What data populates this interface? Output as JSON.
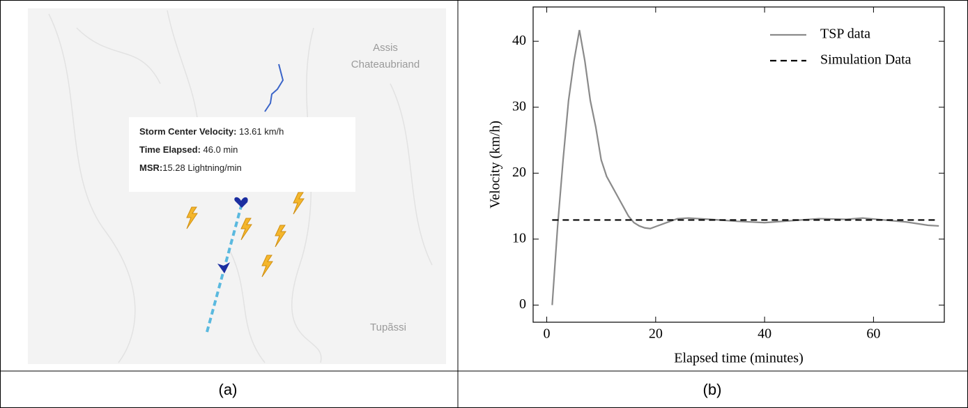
{
  "panel_a": {
    "caption": "(a)",
    "places": [
      "Assis",
      "Chateaubriand",
      "Tupãssi"
    ],
    "tooltip": [
      {
        "label": "Storm Center Velocity:",
        "value": " 13.61 km/h"
      },
      {
        "label": "Time Elapsed:",
        "value": " 46.0 min"
      },
      {
        "label": "MSR:",
        "value": "15.28 Lightning/min"
      }
    ]
  },
  "panel_b": {
    "caption": "(b)"
  },
  "chart_data": {
    "type": "line",
    "xlabel": "Elapsed time (minutes)",
    "ylabel": "Velocity (km/h)",
    "xlim": [
      -2.5,
      73
    ],
    "ylim": [
      -2.6,
      45.2
    ],
    "xticks": [
      0,
      20,
      40,
      60
    ],
    "yticks": [
      0,
      10,
      20,
      30,
      40
    ],
    "legend": "upper right",
    "series": [
      {
        "name": "TSP data",
        "color": "#8a8a8a",
        "line_style": "solid",
        "x": [
          1,
          2,
          3,
          4,
          5,
          6,
          7,
          8,
          9,
          10,
          11,
          12,
          13,
          14,
          15,
          16,
          17,
          18,
          19,
          20,
          22,
          24,
          26,
          30,
          35,
          40,
          45,
          50,
          55,
          58,
          62,
          66,
          70,
          72
        ],
        "values": [
          0,
          12,
          22,
          31,
          37,
          41.7,
          37,
          31,
          27,
          22,
          19.5,
          18,
          16.5,
          15,
          13.5,
          12.5,
          12,
          11.7,
          11.6,
          11.9,
          12.5,
          13.1,
          13.2,
          13,
          12.7,
          12.5,
          12.8,
          13.1,
          13,
          13.2,
          12.9,
          12.6,
          12.1,
          12
        ]
      },
      {
        "name": "Simulation Data",
        "color": "#000000",
        "line_style": "dashed",
        "x": [
          1,
          72
        ],
        "values": [
          12.9,
          12.9
        ]
      }
    ]
  }
}
